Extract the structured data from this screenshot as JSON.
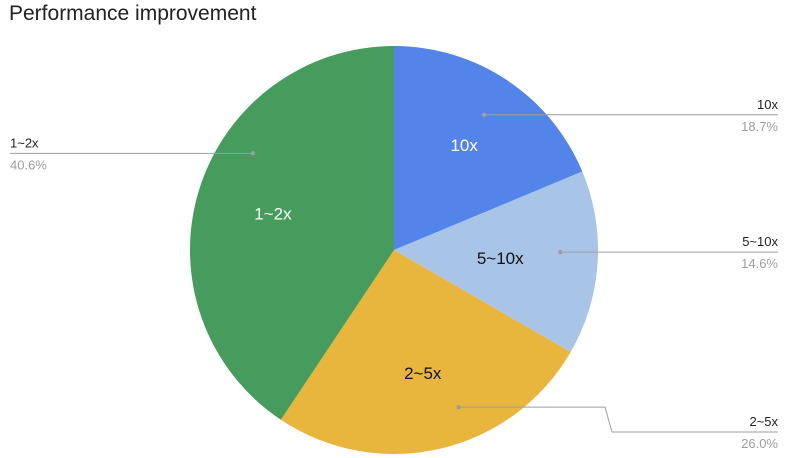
{
  "chart_data": {
    "type": "pie",
    "title": "Performance improvement",
    "start_angle_deg": 0,
    "direction": "clockwise",
    "slices": [
      {
        "label": "10x",
        "percent": "18.7%",
        "value": 18.7,
        "color": "#5384ea",
        "label_color": "#ffffff",
        "legend_side": "right"
      },
      {
        "label": "5~10x",
        "percent": "14.6%",
        "value": 14.6,
        "color": "#a8c4e6",
        "label_color": "#111111",
        "legend_side": "right"
      },
      {
        "label": "2~5x",
        "percent": "26.0%",
        "value": 26.0,
        "color": "#e8b63d",
        "label_color": "#111111",
        "legend_side": "right"
      },
      {
        "label": "1~2x",
        "percent": "40.6%",
        "value": 40.6,
        "color": "#469c5c",
        "label_color": "#ffffff",
        "legend_side": "left"
      }
    ],
    "legend": "leader-lines"
  }
}
